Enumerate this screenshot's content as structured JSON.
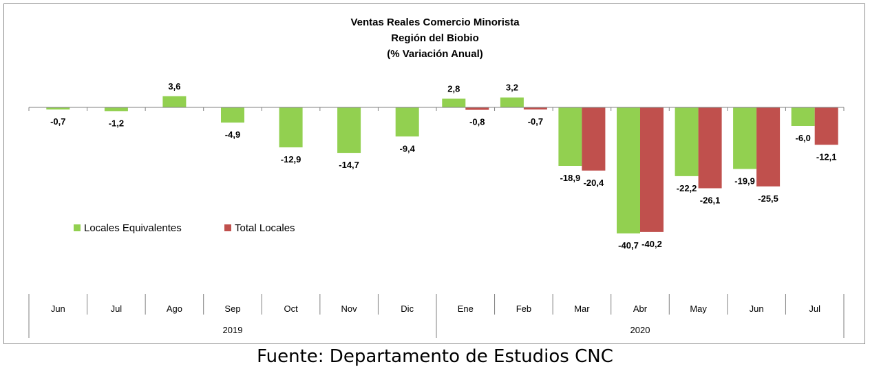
{
  "chart_data": {
    "type": "bar",
    "title": [
      "Ventas Reales Comercio Minorista",
      "Región del Biobio",
      "(% Variación Anual)"
    ],
    "categories": [
      "Jun",
      "Jul",
      "Ago",
      "Sep",
      "Oct",
      "Nov",
      "Dic",
      "Ene",
      "Feb",
      "Mar",
      "Abr",
      "May",
      "Jun",
      "Jul"
    ],
    "year_groups": [
      {
        "label": "2019",
        "start": 0,
        "end": 6
      },
      {
        "label": "2020",
        "start": 7,
        "end": 13
      }
    ],
    "series": [
      {
        "name": "Locales Equivalentes",
        "color": "#92d050",
        "values": [
          -0.7,
          -1.2,
          3.6,
          -4.9,
          -12.9,
          -14.7,
          -9.4,
          2.8,
          3.2,
          -18.9,
          -40.7,
          -22.2,
          -19.9,
          -6.0
        ],
        "labels": [
          "-0,7",
          "-1,2",
          "3,6",
          "-4,9",
          "-12,9",
          "-14,7",
          "-9,4",
          "2,8",
          "3,2",
          "-18,9",
          "-40,7",
          "-22,2",
          "-19,9",
          "-6,0"
        ]
      },
      {
        "name": "Total Locales",
        "color": "#c0504d",
        "values": [
          null,
          null,
          null,
          null,
          null,
          null,
          null,
          -0.8,
          -0.7,
          -20.4,
          -40.2,
          -26.1,
          -25.5,
          -12.1
        ],
        "labels": [
          null,
          null,
          null,
          null,
          null,
          null,
          null,
          "-0,8",
          "-0,7",
          "-20,4",
          "-40,2",
          "-26,1",
          "-25,5",
          "-12,1"
        ]
      }
    ],
    "legend_position": "left",
    "grid": false
  },
  "source": "Fuente: Departamento de Estudios CNC"
}
